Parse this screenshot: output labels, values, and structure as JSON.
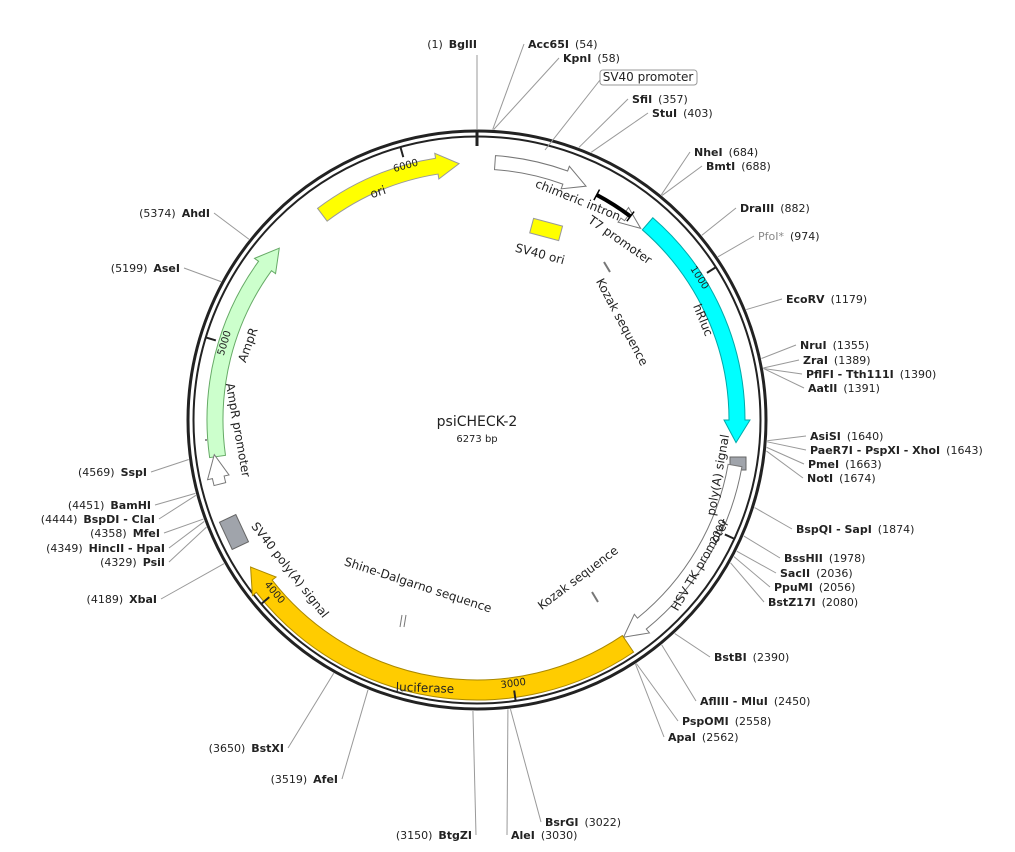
{
  "title": "psiCHECK-2",
  "size": "6273 bp",
  "sites": [
    {
      "name": "BglII",
      "position": "(1)"
    },
    {
      "name": "Acc65I",
      "position": "(54)"
    },
    {
      "name": "KpnI",
      "position": "(58)"
    },
    {
      "name": "SfiI",
      "position": "(357)"
    },
    {
      "name": "StuI",
      "position": "(403)"
    },
    {
      "name": "NheI",
      "position": "(684)"
    },
    {
      "name": "BmtI",
      "position": "(688)"
    },
    {
      "name": "DraIII",
      "position": "(882)"
    },
    {
      "name": "PfoI*",
      "position": "(974)"
    },
    {
      "name": "EcoRV",
      "position": "(1179)"
    },
    {
      "name": "NruI",
      "position": "(1355)"
    },
    {
      "name": "ZraI",
      "position": "(1389)"
    },
    {
      "name": "PflFI - Tth111I",
      "position": "(1390)"
    },
    {
      "name": "AatII",
      "position": "(1391)"
    },
    {
      "name": "AsiSI",
      "position": "(1640)"
    },
    {
      "name": "PaeR7I - PspXI - XhoI",
      "position": "(1643)"
    },
    {
      "name": "PmeI",
      "position": "(1663)"
    },
    {
      "name": "NotI",
      "position": "(1674)"
    },
    {
      "name": "BspQI - SapI",
      "position": "(1874)"
    },
    {
      "name": "BssHII",
      "position": "(1978)"
    },
    {
      "name": "SacII",
      "position": "(2036)"
    },
    {
      "name": "PpuMI",
      "position": "(2056)"
    },
    {
      "name": "BstZ17I",
      "position": "(2080)"
    },
    {
      "name": "BstBI",
      "position": "(2390)"
    },
    {
      "name": "AflIII - MluI",
      "position": "(2450)"
    },
    {
      "name": "PspOMI",
      "position": "(2558)"
    },
    {
      "name": "ApaI",
      "position": "(2562)"
    },
    {
      "name": "BsrGI",
      "position": "(3022)"
    },
    {
      "name": "AleI",
      "position": "(3030)"
    },
    {
      "name": "BtgZI",
      "position": "(3150)"
    },
    {
      "name": "AfeI",
      "position": "(3519)"
    },
    {
      "name": "BstXI",
      "position": "(3650)"
    },
    {
      "name": "XbaI",
      "position": "(4189)"
    },
    {
      "name": "PsiI",
      "position": "(4329)"
    },
    {
      "name": "HincII - HpaI",
      "position": "(4349)"
    },
    {
      "name": "MfeI",
      "position": "(4358)"
    },
    {
      "name": "BspDI - ClaI",
      "position": "(4444)"
    },
    {
      "name": "BamHI",
      "position": "(4451)"
    },
    {
      "name": "SspI",
      "position": "(4569)"
    },
    {
      "name": "AseI",
      "position": "(5199)"
    },
    {
      "name": "AhdI",
      "position": "(5374)"
    }
  ],
  "features": {
    "sv40_promoter": "SV40 promoter",
    "chimeric_intron": "chimeric intron",
    "t7_promoter": "T7 promoter",
    "sv40_ori": "SV40 ori",
    "kozak_1": "Kozak sequence",
    "hrluc": "hRluc",
    "polya_signal": "poly(A) signal",
    "hsv_tk_promoter": "HSV TK promoter",
    "kozak_2": "Kozak sequence",
    "shine_dalgarno": "Shine-Dalgarno sequence",
    "luciferase": "luciferase",
    "sv40_polya": "SV40 poly(A) signal",
    "ampr_promoter": "AmpR promoter",
    "ampr": "AmpR",
    "ori": "ori"
  },
  "scale_ticks": [
    1000,
    2000,
    3000,
    4000,
    5000,
    6000
  ],
  "total_bp": 6273
}
